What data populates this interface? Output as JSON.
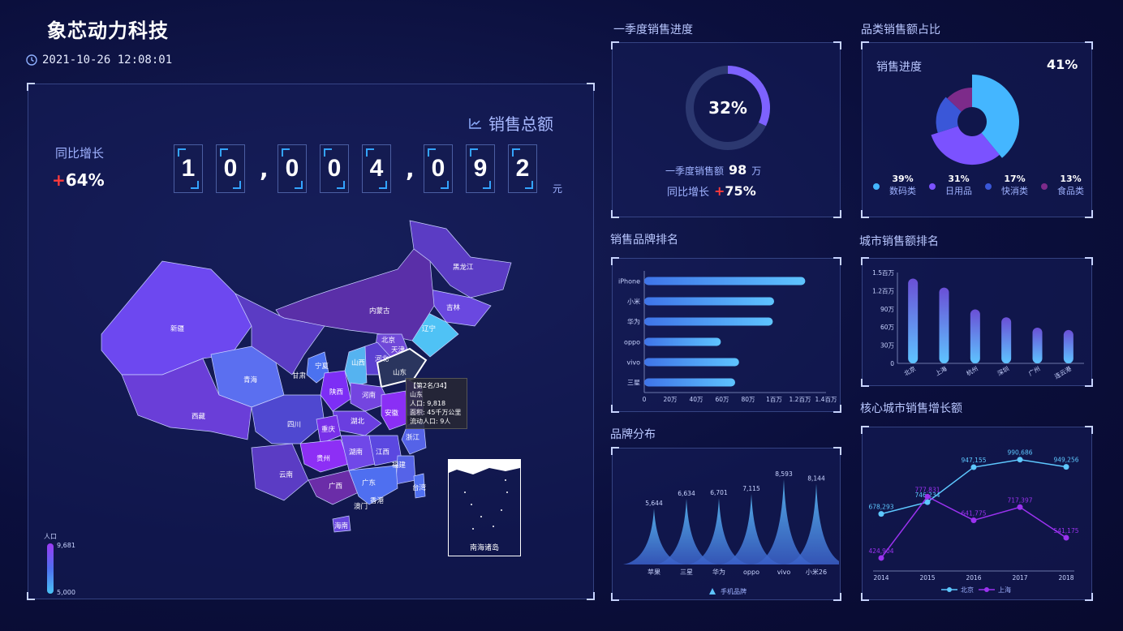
{
  "header": {
    "company": "象芯动力科技",
    "datetime": "2021-10-26 12:08:01"
  },
  "total_sales": {
    "title": "销售总额",
    "digits": [
      "1",
      "0",
      ",",
      "0",
      "0",
      "4",
      ",",
      "0",
      "9",
      "2"
    ],
    "unit": "元",
    "yoy_label": "同比增长",
    "yoy_sign": "+",
    "yoy_value": "64%"
  },
  "map": {
    "provinces": [
      "黑龙江",
      "吉林",
      "辽宁",
      "内蒙古",
      "北京",
      "天津",
      "河北",
      "山西",
      "山东",
      "新疆",
      "青海",
      "甘肃",
      "宁夏",
      "陕西",
      "河南",
      "湖北",
      "安徽",
      "江苏",
      "浙江",
      "四川",
      "重庆",
      "西藏",
      "云南",
      "贵州",
      "湖南",
      "江西",
      "福建",
      "广西",
      "广东",
      "台湾",
      "香港",
      "澳门",
      "海南"
    ],
    "tooltip": [
      "【第2名/34】",
      "山东",
      "人口: 9,818",
      "面积: 45千万公里",
      "流动人口: 9人"
    ],
    "inset_label": "南海诸岛",
    "legend_title": "人口",
    "legend_max": "9,681",
    "legend_min": "5,000"
  },
  "q1": {
    "title": "一季度销售进度",
    "percent_text": "32%",
    "percent": 0.32,
    "amount_label": "一季度销售额",
    "amount_value": "98",
    "amount_unit": "万",
    "yoy_label": "同比增长",
    "yoy_sign": "+",
    "yoy_value": "75%"
  },
  "category": {
    "title": "品类销售额占比",
    "progress_label": "销售进度",
    "progress_value": "41%",
    "items": [
      {
        "pct": "39%",
        "name": "数码类",
        "color": "#44b6ff"
      },
      {
        "pct": "31%",
        "name": "日用品",
        "color": "#7b52ff"
      },
      {
        "pct": "17%",
        "name": "快消类",
        "color": "#3a57d8"
      },
      {
        "pct": "13%",
        "name": "食品类",
        "color": "#7d2b8a"
      }
    ]
  },
  "brand_rank": {
    "title": "销售品牌排名",
    "chart_data": {
      "type": "bar",
      "orientation": "horizontal",
      "categories": [
        "iPhone",
        "小米",
        "华为",
        "oppo",
        "vivo",
        "三星"
      ],
      "values": [
        1240000,
        1000000,
        990000,
        590000,
        730000,
        700000
      ],
      "xlim": [
        0,
        1400000
      ],
      "xticks": [
        "0",
        "20万",
        "40万",
        "60万",
        "80万",
        "1百万",
        "1.2百万",
        "1.4百万"
      ]
    }
  },
  "city_rank": {
    "title": "城市销售额排名",
    "chart_data": {
      "type": "bar",
      "categories": [
        "北京",
        "上海",
        "杭州",
        "深圳",
        "广州",
        "连云港"
      ],
      "values": [
        1400000,
        1250000,
        890000,
        760000,
        590000,
        550000
      ],
      "ylim": [
        0,
        1500000
      ],
      "yticks": [
        "0",
        "30万",
        "60万",
        "90万",
        "1.2百万",
        "1.5百万"
      ]
    }
  },
  "brand_dist": {
    "title": "品牌分布",
    "legend": "手机品牌",
    "chart_data": {
      "type": "area",
      "categories": [
        "苹果",
        "三星",
        "华为",
        "oppo",
        "vivo",
        "小米26"
      ],
      "values": [
        5644,
        6634,
        6701,
        7115,
        8593,
        8144
      ],
      "labels": [
        "5,644",
        "6,634",
        "6,701",
        "7,115",
        "8,593",
        "8,144"
      ]
    }
  },
  "growth": {
    "title": "核心城市销售增长额",
    "chart_data": {
      "type": "line",
      "x": [
        "2014",
        "2015",
        "2016",
        "2017",
        "2018"
      ],
      "series": [
        {
          "name": "北京",
          "values": [
            678293,
            746234,
            947155,
            990686,
            949256
          ],
          "labels": [
            "678,293",
            "746,234",
            "947,155",
            "990,686",
            "949,256"
          ],
          "color": "#5ec8ff"
        },
        {
          "name": "上海",
          "values": [
            424904,
            777831,
            641775,
            717397,
            541175
          ],
          "labels": [
            "424,904",
            "777,831",
            "641,775",
            "717,397",
            "541,175"
          ],
          "color": "#9b32f0"
        }
      ]
    }
  }
}
